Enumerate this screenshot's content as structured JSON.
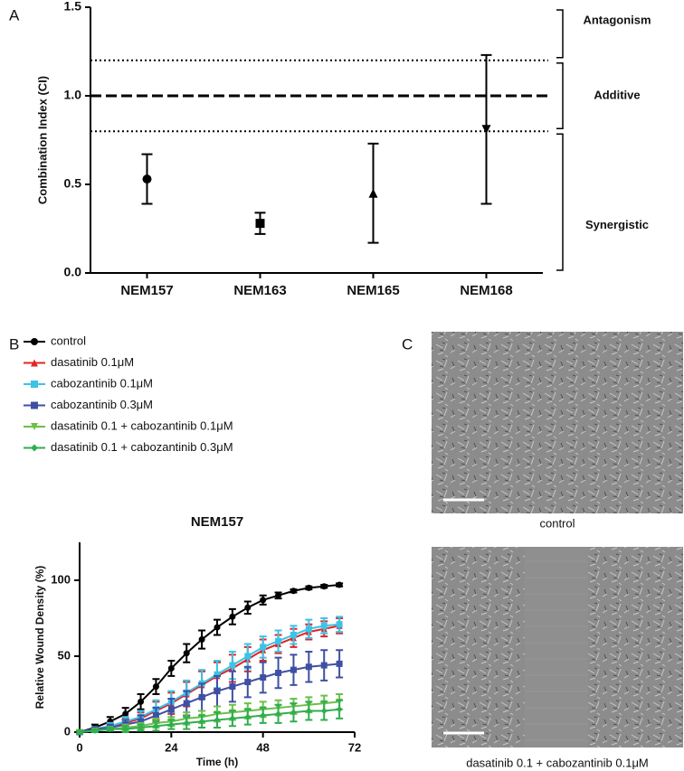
{
  "panel_labels": [
    "A",
    "B",
    "C"
  ],
  "chart_data": [
    {
      "type": "errorbar",
      "y_label": "Combination Index (CI)",
      "categories": [
        "NEM157",
        "NEM163",
        "NEM165",
        "NEM168"
      ],
      "values": [
        0.53,
        0.28,
        0.45,
        0.81
      ],
      "errors": [
        0.14,
        0.06,
        0.28,
        0.42
      ],
      "markers": [
        "circle",
        "square",
        "triangle",
        "triangle-down"
      ],
      "color": "#000000",
      "ylim": [
        0,
        1.5
      ],
      "yticks": [
        {
          "value": 0,
          "label": "0.0"
        },
        0.5,
        {
          "value": 1,
          "label": "1.0"
        },
        1.5
      ],
      "hlines": [
        {
          "value": 1.2,
          "style": "dotted"
        },
        {
          "value": 1,
          "style": "dashed"
        },
        {
          "value": 0.8,
          "style": "dotted"
        }
      ],
      "regions": [
        {
          "label": "Antagonism",
          "from": 1.2,
          "to": 1.5
        },
        {
          "label": "Additive",
          "from": 0.8,
          "to": 1.2
        },
        {
          "label": "Synergistic",
          "from": 0,
          "to": 0.8
        }
      ]
    },
    {
      "type": "line",
      "title": "NEM157",
      "x_label": "Time (h)",
      "y_label": "Relative Wound Density (%)",
      "x": [
        0,
        4,
        8,
        12,
        16,
        20,
        24,
        28,
        32,
        36,
        40,
        44,
        48,
        52,
        56,
        60,
        64,
        68
      ],
      "series": [
        {
          "name": "control",
          "color": "#000000",
          "marker": "circle",
          "values": [
            0,
            3,
            7,
            12,
            20,
            30,
            42,
            52,
            61,
            69,
            76,
            82,
            87,
            90,
            93,
            95,
            96,
            97
          ],
          "errors": [
            1,
            2,
            3,
            4,
            5,
            5,
            5,
            6,
            6,
            5,
            5,
            4,
            3,
            2,
            1,
            1,
            1,
            1
          ]
        },
        {
          "name": "dasatinib 0.1μM",
          "color": "#e02424",
          "marker": "triangle",
          "values": [
            0,
            2,
            4,
            6,
            9,
            14,
            19,
            25,
            31,
            37,
            42,
            48,
            54,
            58,
            62,
            66,
            68,
            70
          ],
          "errors": [
            1,
            1,
            2,
            3,
            4,
            6,
            7,
            8,
            9,
            9,
            9,
            8,
            7,
            6,
            6,
            5,
            5,
            5
          ]
        },
        {
          "name": "cabozantinib 0.1μM",
          "color": "#3cc3e6",
          "marker": "square",
          "values": [
            0,
            2,
            4,
            7,
            10,
            15,
            20,
            26,
            32,
            38,
            44,
            50,
            56,
            60,
            64,
            68,
            70,
            71
          ],
          "errors": [
            1,
            1,
            2,
            3,
            4,
            6,
            7,
            8,
            9,
            9,
            9,
            8,
            7,
            7,
            6,
            6,
            5,
            5
          ]
        },
        {
          "name": "cabozantinib 0.3μM",
          "color": "#3f4fa3",
          "marker": "square",
          "values": [
            0,
            2,
            3,
            5,
            7,
            11,
            15,
            19,
            23,
            27,
            30,
            33,
            36,
            39,
            41,
            43,
            44,
            45
          ],
          "errors": [
            1,
            1,
            2,
            3,
            4,
            5,
            7,
            8,
            9,
            10,
            10,
            10,
            10,
            10,
            10,
            10,
            10,
            9
          ]
        },
        {
          "name": "dasatinib 0.1 + cabozantinib 0.1μM",
          "color": "#6cc04a",
          "marker": "triangle-down",
          "values": [
            0,
            1,
            2,
            3,
            4,
            6,
            7,
            9,
            10,
            12,
            13,
            14,
            15,
            16,
            17,
            18,
            19,
            20
          ],
          "errors": [
            1,
            1,
            1,
            2,
            2,
            3,
            3,
            4,
            4,
            5,
            5,
            5,
            5,
            5,
            5,
            5,
            5,
            5
          ]
        },
        {
          "name": "dasatinib 0.1 + cabozantinib 0.3μM",
          "color": "#2fae4f",
          "marker": "diamond",
          "values": [
            0,
            1,
            2,
            2,
            3,
            4,
            5,
            6,
            7,
            8,
            9,
            10,
            11,
            12,
            13,
            14,
            14,
            15
          ],
          "errors": [
            1,
            1,
            1,
            2,
            2,
            3,
            3,
            4,
            4,
            5,
            5,
            5,
            5,
            6,
            6,
            6,
            6,
            6
          ]
        }
      ],
      "xlim": [
        0,
        72
      ],
      "xticks": [
        0,
        24,
        48,
        72
      ],
      "ylim": [
        0,
        125
      ],
      "yticks": [
        0,
        50,
        100
      ]
    }
  ],
  "images": [
    {
      "caption": "control"
    },
    {
      "caption": "dasatinib 0.1 + cabozantinib 0.1μM"
    }
  ]
}
